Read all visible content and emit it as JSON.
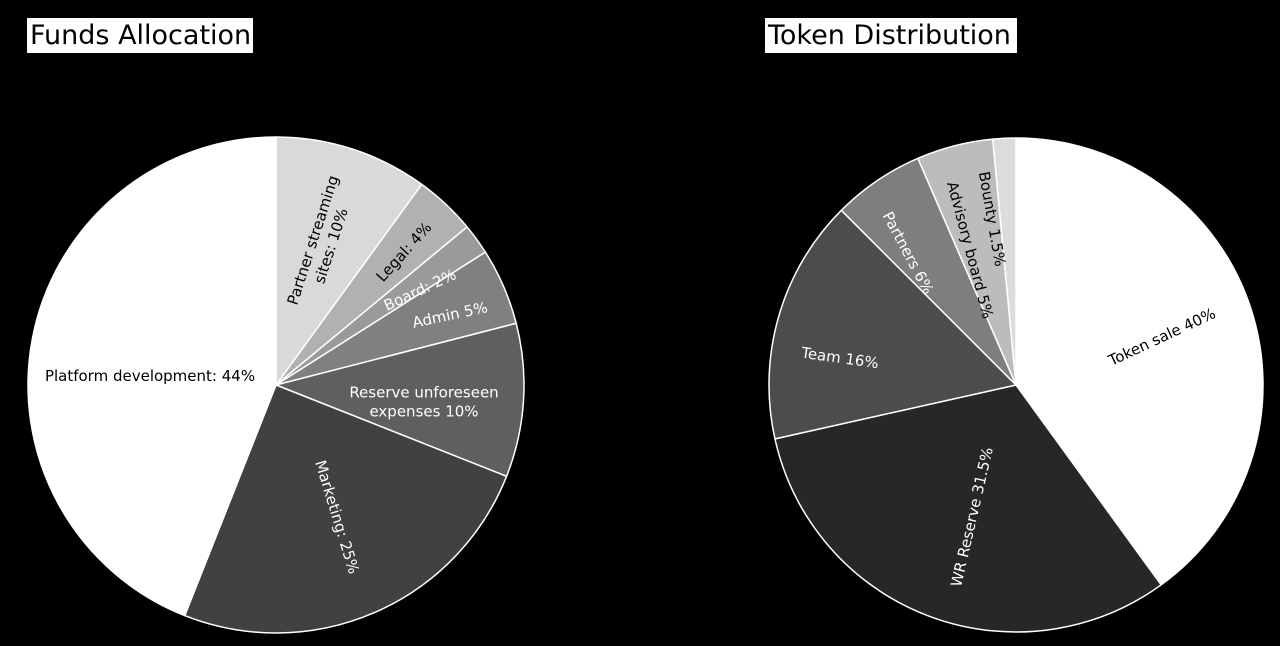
{
  "chart_data": [
    {
      "type": "pie",
      "title": "Funds Allocation",
      "slices": [
        {
          "label": "Partner streaming sites: 10%",
          "lines": [
            "Partner streaming",
            "sites: 10%"
          ],
          "value": 10,
          "color": "#d9d9d9",
          "text_color": "#000000"
        },
        {
          "label": "Legal: 4%",
          "lines": [
            "Legal: 4%"
          ],
          "value": 4,
          "color": "#b1b1b1",
          "text_color": "#000000"
        },
        {
          "label": "Board: 2%",
          "lines": [
            "Board: 2%"
          ],
          "value": 2,
          "color": "#9a9a9a",
          "text_color": "#ffffff"
        },
        {
          "label": "Admin 5%",
          "lines": [
            "Admin 5%"
          ],
          "value": 5,
          "color": "#808080",
          "text_color": "#ffffff"
        },
        {
          "label": "Reserve unforeseen expenses 10%",
          "lines": [
            "Reserve unforeseen",
            "expenses 10%"
          ],
          "value": 10,
          "color": "#5f5f5f",
          "text_color": "#ffffff"
        },
        {
          "label": "Marketing: 25%",
          "lines": [
            "Marketing: 25%"
          ],
          "value": 25,
          "color": "#414141",
          "text_color": "#ffffff"
        },
        {
          "label": "Platform development: 44%",
          "lines": [
            "Platform development: 44%"
          ],
          "value": 44,
          "color": "#ffffff",
          "text_color": "#000000"
        }
      ],
      "start": "12 o'clock",
      "direction": "clockwise",
      "legend": "none"
    },
    {
      "type": "pie",
      "title": "Token Distribution",
      "slices": [
        {
          "label": "Token sale 40%",
          "lines": [
            "Token sale 40%"
          ],
          "value": 40,
          "color": "#ffffff",
          "text_color": "#000000"
        },
        {
          "label": "WR Reserve 31.5%",
          "lines": [
            "WR Reserve 31.5%"
          ],
          "value": 31.5,
          "color": "#272727",
          "text_color": "#ffffff"
        },
        {
          "label": "Team 16%",
          "lines": [
            "Team 16%"
          ],
          "value": 16,
          "color": "#4c4c4c",
          "text_color": "#ffffff"
        },
        {
          "label": "Partners 6%",
          "lines": [
            "Partners 6%"
          ],
          "value": 6,
          "color": "#7e7e7e",
          "text_color": "#ffffff"
        },
        {
          "label": "Advisory board 5%",
          "lines": [
            "Advisory board 5%"
          ],
          "value": 5,
          "color": "#bcbcbc",
          "text_color": "#000000"
        },
        {
          "label": "Bounty 1.5%",
          "lines": [
            "Bounty 1.5%"
          ],
          "value": 1.5,
          "color": "#dcdcdc",
          "text_color": "#000000"
        }
      ],
      "start": "12 o'clock",
      "direction": "clockwise",
      "legend": "none"
    }
  ]
}
